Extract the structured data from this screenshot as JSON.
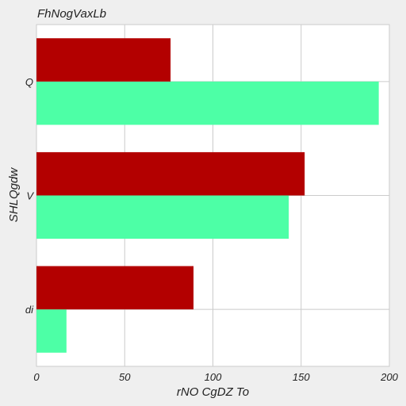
{
  "chart_data": {
    "type": "bar",
    "orientation": "horizontal",
    "title": "FhNogVaxLb",
    "xlabel": "rNO CgDZ To",
    "ylabel": "SHLQgdw",
    "categories": [
      "di",
      "V",
      "Q"
    ],
    "series": [
      {
        "color": "#4dffa6",
        "values": [
          17,
          143,
          194
        ]
      },
      {
        "color": "#b30000",
        "values": [
          89,
          152,
          76
        ]
      }
    ],
    "xlim": [
      0,
      200
    ],
    "xticks": [
      0,
      50,
      100,
      150,
      200
    ],
    "grid": true,
    "legend": "none"
  }
}
